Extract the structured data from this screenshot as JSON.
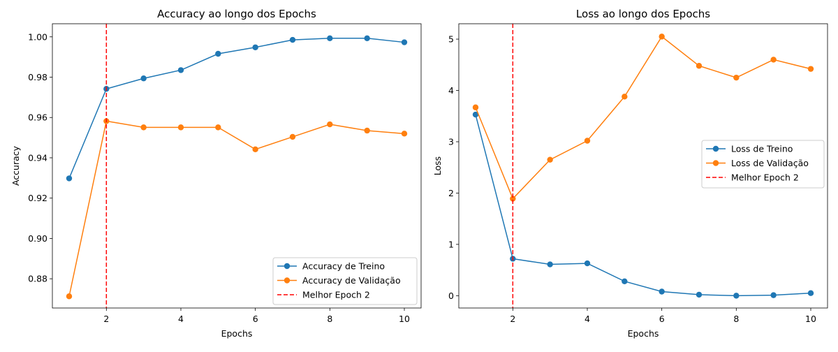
{
  "chart_data": [
    {
      "type": "line",
      "title": "Accuracy ao longo dos Epochs",
      "xlabel": "Epochs",
      "ylabel": "Accuracy",
      "xlim": [
        0.55,
        10.45
      ],
      "ylim": [
        0.8655,
        1.0065
      ],
      "xticks": [
        2,
        4,
        6,
        8,
        10
      ],
      "xtick_labels": [
        "2",
        "4",
        "6",
        "8",
        "10"
      ],
      "yticks": [
        0.88,
        0.9,
        0.92,
        0.94,
        0.96,
        0.98,
        1.0
      ],
      "ytick_labels": [
        "0.88",
        "0.90",
        "0.92",
        "0.94",
        "0.96",
        "0.98",
        "1.00"
      ],
      "x": [
        1,
        2,
        3,
        4,
        5,
        6,
        7,
        8,
        9,
        10
      ],
      "series": [
        {
          "name": "Accuracy de Treino",
          "color": "#1f77b4",
          "marker": "circle",
          "values": [
            0.9298,
            0.9742,
            0.9794,
            0.9835,
            0.9916,
            0.9948,
            0.9985,
            0.9993,
            0.9993,
            0.9973
          ]
        },
        {
          "name": "Accuracy de Validação",
          "color": "#ff7f0e",
          "marker": "circle",
          "values": [
            0.8713,
            0.9582,
            0.9551,
            0.9551,
            0.9551,
            0.9442,
            0.9504,
            0.9566,
            0.9535,
            0.952
          ]
        }
      ],
      "vline": {
        "x": 2,
        "name": "Melhor Epoch 2",
        "color": "#ff0000",
        "style": "dashed"
      },
      "legend": "lower-right",
      "grid": false
    },
    {
      "type": "line",
      "title": "Loss ao longo dos Epochs",
      "xlabel": "Epochs",
      "ylabel": "Loss",
      "xlim": [
        0.55,
        10.45
      ],
      "ylim": [
        -0.24,
        5.3
      ],
      "xticks": [
        2,
        4,
        6,
        8,
        10
      ],
      "xtick_labels": [
        "2",
        "4",
        "6",
        "8",
        "10"
      ],
      "yticks": [
        0,
        1,
        2,
        3,
        4,
        5
      ],
      "ytick_labels": [
        "0",
        "1",
        "2",
        "3",
        "4",
        "5"
      ],
      "x": [
        1,
        2,
        3,
        4,
        5,
        6,
        7,
        8,
        9,
        10
      ],
      "series": [
        {
          "name": "Loss de Treino",
          "color": "#1f77b4",
          "marker": "circle",
          "values": [
            3.53,
            0.72,
            0.61,
            0.63,
            0.28,
            0.08,
            0.02,
            0.0,
            0.01,
            0.05
          ]
        },
        {
          "name": "Loss de Validação",
          "color": "#ff7f0e",
          "marker": "circle",
          "values": [
            3.67,
            1.89,
            2.65,
            3.02,
            3.88,
            5.05,
            4.48,
            4.25,
            4.6,
            4.42
          ]
        }
      ],
      "vline": {
        "x": 2,
        "name": "Melhor Epoch 2",
        "color": "#ff0000",
        "style": "dashed"
      },
      "legend": "center-right",
      "grid": false
    }
  ]
}
